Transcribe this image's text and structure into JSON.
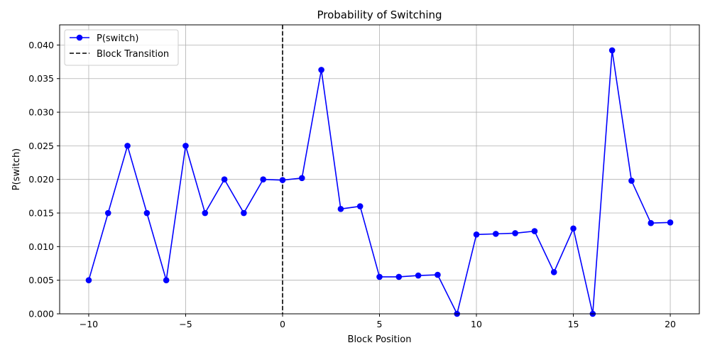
{
  "chart_data": {
    "type": "line",
    "title": "Probability of Switching",
    "xlabel": "Block Position",
    "ylabel": "P(switch)",
    "xlim": [
      -11.5,
      21.5
    ],
    "ylim": [
      0,
      0.043
    ],
    "xticks": [
      -10,
      -5,
      0,
      5,
      10,
      15,
      20
    ],
    "xtick_labels": [
      "−10",
      "−5",
      "0",
      "5",
      "10",
      "15",
      "20"
    ],
    "yticks": [
      0.0,
      0.005,
      0.01,
      0.015,
      0.02,
      0.025,
      0.03,
      0.035,
      0.04
    ],
    "ytick_labels": [
      "0.000",
      "0.005",
      "0.010",
      "0.015",
      "0.020",
      "0.025",
      "0.030",
      "0.035",
      "0.040"
    ],
    "grid": true,
    "legend_position": "top-left",
    "series": [
      {
        "name": "P(switch)",
        "color": "#0000ff",
        "marker": "circle",
        "x": [
          -10,
          -9,
          -8,
          -7,
          -6,
          -5,
          -4,
          -3,
          -2,
          -1,
          0,
          1,
          2,
          3,
          4,
          5,
          6,
          7,
          8,
          9,
          10,
          11,
          12,
          13,
          14,
          15,
          16,
          17,
          18,
          19,
          20
        ],
        "y": [
          0.005,
          0.015,
          0.025,
          0.015,
          0.005,
          0.025,
          0.015,
          0.02,
          0.015,
          0.02,
          0.0199,
          0.0202,
          0.0363,
          0.0156,
          0.016,
          0.0055,
          0.0055,
          0.0057,
          0.0058,
          0.0,
          0.0118,
          0.0119,
          0.012,
          0.0123,
          0.0062,
          0.0127,
          0.0,
          0.0392,
          0.0198,
          0.0135,
          0.0136
        ]
      }
    ],
    "vline": {
      "name": "Block Transition",
      "x": 0,
      "color": "#000000",
      "style": "dashed"
    }
  }
}
